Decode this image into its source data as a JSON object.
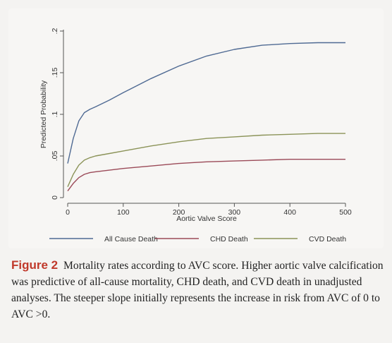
{
  "figure_label": "Figure 2",
  "caption": "Mortality rates according to AVC score. Higher aortic valve calcification was predictive of all-cause mortality, CHD death, and CVD death in unadjusted analyses. The steeper slope initially represents the increase in risk from AVC of 0 to AVC >0.",
  "colors": {
    "all_cause": "#4f6a93",
    "chd": "#9b4a58",
    "cvd": "#8b9358"
  },
  "chart_data": {
    "type": "line",
    "title": "",
    "xlabel": "Aortic Valve Score",
    "ylabel": "Predicted Probability",
    "xlim": [
      0,
      500
    ],
    "ylim": [
      0,
      0.2
    ],
    "xticks": [
      0,
      100,
      200,
      300,
      400,
      500
    ],
    "xtick_labels": [
      "0",
      "100",
      "200",
      "300",
      "400",
      "500"
    ],
    "yticks": [
      0,
      0.05,
      0.1,
      0.15,
      0.2
    ],
    "ytick_labels": [
      "0",
      ".05",
      ".1",
      ".15",
      ".2"
    ],
    "grid": false,
    "legend_position": "bottom",
    "x": [
      0,
      10,
      20,
      30,
      40,
      50,
      75,
      100,
      150,
      200,
      250,
      300,
      350,
      400,
      450,
      500
    ],
    "series": [
      {
        "name": "All Cause Death",
        "color_key": "all_cause",
        "values": [
          0.041,
          0.071,
          0.092,
          0.102,
          0.106,
          0.109,
          0.117,
          0.126,
          0.143,
          0.158,
          0.17,
          0.178,
          0.183,
          0.185,
          0.186,
          0.186
        ]
      },
      {
        "name": "CHD Death",
        "color_key": "chd",
        "values": [
          0.008,
          0.017,
          0.024,
          0.028,
          0.03,
          0.031,
          0.033,
          0.035,
          0.038,
          0.041,
          0.043,
          0.044,
          0.045,
          0.046,
          0.046,
          0.046
        ]
      },
      {
        "name": "CVD Death",
        "color_key": "cvd",
        "values": [
          0.013,
          0.028,
          0.039,
          0.045,
          0.048,
          0.05,
          0.053,
          0.056,
          0.062,
          0.067,
          0.071,
          0.073,
          0.075,
          0.076,
          0.077,
          0.077
        ]
      }
    ]
  }
}
